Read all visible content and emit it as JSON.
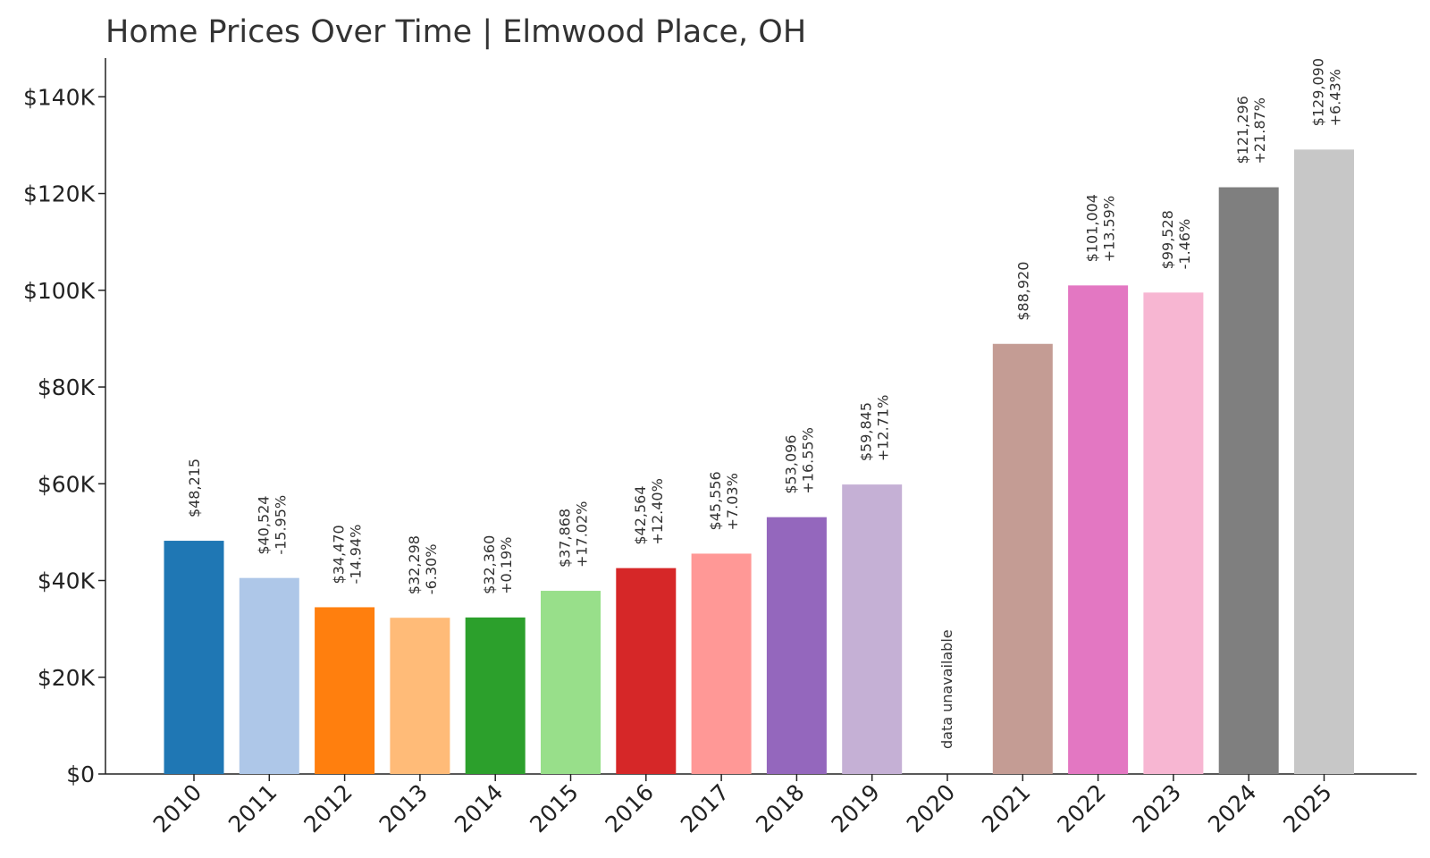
{
  "chart_data": {
    "type": "bar",
    "title": "Home Prices Over Time | Elmwood Place, OH",
    "xlabel": "",
    "ylabel": "",
    "ylim": [
      0,
      148000
    ],
    "yticks": [
      0,
      20000,
      40000,
      60000,
      80000,
      100000,
      120000,
      140000
    ],
    "ytick_labels": [
      "$0",
      "$20K",
      "$40K",
      "$60K",
      "$80K",
      "$100K",
      "$120K",
      "$140K"
    ],
    "grid": false,
    "legend": "none",
    "categories": [
      "2010",
      "2011",
      "2012",
      "2013",
      "2014",
      "2015",
      "2016",
      "2017",
      "2018",
      "2019",
      "2020",
      "2021",
      "2022",
      "2023",
      "2024",
      "2025"
    ],
    "values": [
      48215,
      40524,
      34470,
      32298,
      32360,
      37868,
      42564,
      45556,
      53096,
      59845,
      null,
      88920,
      101004,
      99528,
      121296,
      129090
    ],
    "value_labels": [
      "$48,215",
      "$40,524",
      "$34,470",
      "$32,298",
      "$32,360",
      "$37,868",
      "$42,564",
      "$45,556",
      "$53,096",
      "$59,845",
      "",
      "$88,920",
      "$101,004",
      "$99,528",
      "$121,296",
      "$129,090"
    ],
    "change_labels": [
      "",
      "-15.95%",
      "-14.94%",
      "-6.30%",
      "+0.19%",
      "+17.02%",
      "+12.40%",
      "+7.03%",
      "+16.55%",
      "+12.71%",
      "",
      "",
      "+13.59%",
      "-1.46%",
      "+21.87%",
      "+6.43%"
    ],
    "missing_label": "data unavailable",
    "colors": [
      "#1f77b4",
      "#aec7e8",
      "#ff7f0e",
      "#ffbb78",
      "#2ca02c",
      "#98df8a",
      "#d62728",
      "#ff9896",
      "#9467bd",
      "#c5b0d5",
      "#8c564b",
      "#c49c94",
      "#e377c2",
      "#f7b6d2",
      "#7f7f7f",
      "#c7c7c7"
    ]
  }
}
